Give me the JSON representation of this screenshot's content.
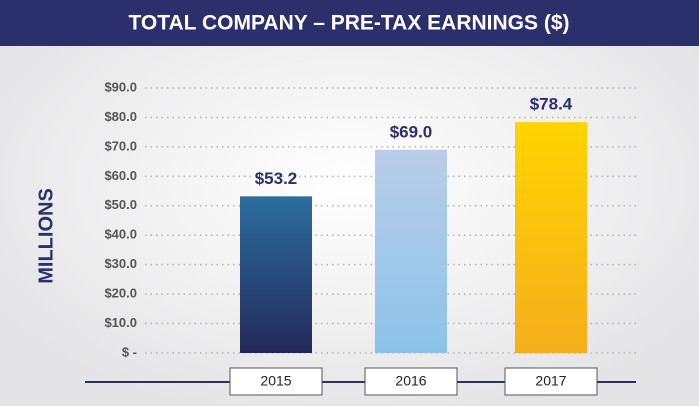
{
  "chart_data": {
    "type": "bar",
    "title": "TOTAL COMPANY – PRE-TAX EARNINGS ($)",
    "y_label": "MILLIONS",
    "categories": [
      "2015",
      "2016",
      "2017"
    ],
    "values": [
      53.2,
      69.0,
      78.4
    ],
    "value_labels": [
      "$53.2",
      "$69.0",
      "$78.4"
    ],
    "colors": [
      [
        "#2c6d9e",
        "#222a5a"
      ],
      [
        "#b9cde9",
        "#8cc3ea"
      ],
      [
        "#ffd400",
        "#f6ae1c"
      ]
    ],
    "ylim": [
      0,
      90
    ],
    "yticks": [
      {
        "value": 0,
        "label": "$ -"
      },
      {
        "value": 10,
        "label": "$10.0"
      },
      {
        "value": 20,
        "label": "$20.0"
      },
      {
        "value": 30,
        "label": "$30.0"
      },
      {
        "value": 40,
        "label": "$40.0"
      },
      {
        "value": 50,
        "label": "$50.0"
      },
      {
        "value": 60,
        "label": "$60.0"
      },
      {
        "value": 70,
        "label": "$70.0"
      },
      {
        "value": 80,
        "label": "$80.0"
      },
      {
        "value": 90,
        "label": "$90.0"
      }
    ],
    "grid": true
  }
}
